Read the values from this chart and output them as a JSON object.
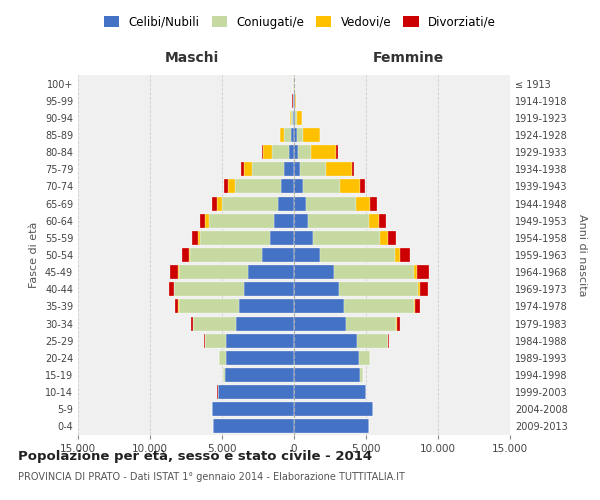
{
  "age_groups": [
    "0-4",
    "5-9",
    "10-14",
    "15-19",
    "20-24",
    "25-29",
    "30-34",
    "35-39",
    "40-44",
    "45-49",
    "50-54",
    "55-59",
    "60-64",
    "65-69",
    "70-74",
    "75-79",
    "80-84",
    "85-89",
    "90-94",
    "95-99",
    "100+"
  ],
  "birth_years": [
    "2009-2013",
    "2004-2008",
    "1999-2003",
    "1994-1998",
    "1989-1993",
    "1984-1988",
    "1979-1983",
    "1974-1978",
    "1969-1973",
    "1964-1968",
    "1959-1963",
    "1954-1958",
    "1949-1953",
    "1944-1948",
    "1939-1943",
    "1934-1938",
    "1929-1933",
    "1924-1928",
    "1919-1923",
    "1914-1918",
    "≤ 1913"
  ],
  "maschi": {
    "celibi": [
      5600,
      5700,
      5300,
      4800,
      4700,
      4700,
      4000,
      3800,
      3500,
      3200,
      2200,
      1700,
      1400,
      1100,
      900,
      700,
      350,
      200,
      100,
      60,
      30
    ],
    "coniugati": [
      5,
      5,
      10,
      100,
      500,
      1500,
      3000,
      4200,
      4800,
      4800,
      5000,
      4800,
      4500,
      3900,
      3200,
      2200,
      1200,
      500,
      100,
      30,
      10
    ],
    "vedovi": [
      0,
      0,
      1,
      2,
      5,
      10,
      20,
      40,
      60,
      80,
      100,
      150,
      250,
      350,
      500,
      600,
      600,
      250,
      60,
      10,
      5
    ],
    "divorziati": [
      2,
      2,
      5,
      10,
      20,
      50,
      100,
      200,
      350,
      500,
      450,
      400,
      350,
      350,
      250,
      150,
      60,
      30,
      10,
      5,
      5
    ]
  },
  "femmine": {
    "nubili": [
      5200,
      5500,
      5000,
      4600,
      4500,
      4400,
      3600,
      3500,
      3100,
      2800,
      1800,
      1300,
      1000,
      800,
      600,
      400,
      250,
      200,
      100,
      60,
      30
    ],
    "coniugate": [
      5,
      5,
      20,
      200,
      750,
      2100,
      3500,
      4800,
      5500,
      5500,
      5200,
      4700,
      4200,
      3500,
      2600,
      1800,
      900,
      400,
      80,
      20,
      10
    ],
    "vedove": [
      0,
      0,
      2,
      5,
      10,
      20,
      40,
      80,
      150,
      250,
      350,
      500,
      700,
      1000,
      1400,
      1800,
      1800,
      1200,
      400,
      50,
      5
    ],
    "divorziate": [
      2,
      2,
      5,
      10,
      30,
      80,
      200,
      350,
      550,
      800,
      700,
      600,
      500,
      450,
      350,
      200,
      100,
      40,
      10,
      5,
      2
    ]
  },
  "colors": {
    "celibi": "#4472c4",
    "coniugati": "#c5d9a0",
    "vedovi": "#ffc000",
    "divorziati": "#cc0000"
  },
  "legend_labels": [
    "Celibi/Nubili",
    "Coniugati/e",
    "Vedovi/e",
    "Divorziati/e"
  ],
  "xlim": 15000,
  "title": "Popolazione per età, sesso e stato civile - 2014",
  "subtitle": "PROVINCIA DI PRATO - Dati ISTAT 1° gennaio 2014 - Elaborazione TUTTITALIA.IT",
  "xlabel_left": "Maschi",
  "xlabel_right": "Femmine",
  "ylabel_left": "Fasce di età",
  "ylabel_right": "Anni di nascita",
  "bg_color": "#f0f0f0",
  "grid_color": "#cccccc"
}
